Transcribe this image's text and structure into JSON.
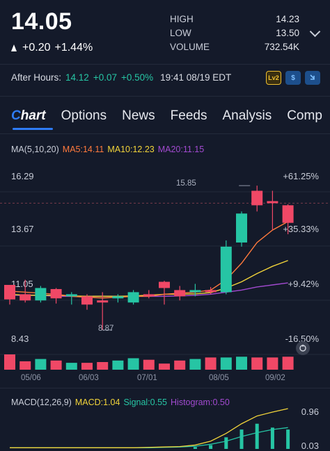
{
  "quote": {
    "price": "14.05",
    "change": "+0.20",
    "change_pct": "+1.44%",
    "high_label": "HIGH",
    "high_value": "14.23",
    "low_label": "LOW",
    "low_value": "13.50",
    "volume_label": "VOLUME",
    "volume_value": "732.54K"
  },
  "after_hours": {
    "label": "After Hours:",
    "price": "14.12",
    "change": "+0.07",
    "change_pct": "+0.50%",
    "time": "19:41 08/19 EDT",
    "badges": [
      "Lv2",
      "$",
      "arrow-down-icon"
    ]
  },
  "tabs": [
    {
      "label": "Chart",
      "active": true
    },
    {
      "label": "Options"
    },
    {
      "label": "News"
    },
    {
      "label": "Feeds"
    },
    {
      "label": "Analysis"
    },
    {
      "label": "Comp"
    }
  ],
  "ma_legend": {
    "title": "MA(5,10,20)",
    "ma5": "MA5:14.11",
    "ma10": "MA10:12.23",
    "ma20": "MA20:11.15"
  },
  "colors": {
    "up": "#26c5a4",
    "down": "#f04866",
    "ma5": "#ff7a3d",
    "ma10": "#f2d43a",
    "ma20": "#a24ad0"
  },
  "y_axis_left": [
    "16.29",
    "13.67",
    "11.05",
    "8.43"
  ],
  "y_axis_right": [
    "+61.25%",
    "+35.33%",
    "+9.42%",
    "-16.50%"
  ],
  "x_axis": [
    "05/06",
    "06/03",
    "07/01",
    "08/05",
    "09/02"
  ],
  "annotations": {
    "high": "15.85",
    "low": "8.87"
  },
  "macd_legend": {
    "title": "MACD(12,26,9)",
    "macd": "MACD:1.04",
    "signal": "Signal:0.55",
    "histogram": "Histogram:0.50"
  },
  "macd_axis": [
    "0.96",
    "0.03"
  ],
  "chart_data": {
    "type": "candlestick",
    "ylim": [
      8.43,
      16.29
    ],
    "candles": [
      {
        "o": 11.05,
        "h": 11.05,
        "l": 10.1,
        "c": 10.35,
        "dir": "down"
      },
      {
        "o": 10.6,
        "h": 11.3,
        "l": 10.2,
        "c": 10.3,
        "dir": "down"
      },
      {
        "o": 10.3,
        "h": 11.0,
        "l": 10.2,
        "c": 10.9,
        "dir": "up"
      },
      {
        "o": 10.85,
        "h": 10.9,
        "l": 10.15,
        "c": 10.4,
        "dir": "down"
      },
      {
        "o": 10.5,
        "h": 10.7,
        "l": 10.1,
        "c": 10.6,
        "dir": "up"
      },
      {
        "o": 10.5,
        "h": 10.6,
        "l": 9.85,
        "c": 10.1,
        "dir": "down"
      },
      {
        "o": 10.2,
        "h": 10.7,
        "l": 8.87,
        "c": 10.3,
        "dir": "down"
      },
      {
        "o": 10.4,
        "h": 10.6,
        "l": 10.2,
        "c": 10.5,
        "dir": "up"
      },
      {
        "o": 10.2,
        "h": 10.8,
        "l": 10.1,
        "c": 10.7,
        "dir": "up"
      },
      {
        "o": 10.6,
        "h": 10.8,
        "l": 10.4,
        "c": 10.5,
        "dir": "down"
      },
      {
        "o": 11.2,
        "h": 11.25,
        "l": 10.1,
        "c": 10.9,
        "dir": "down"
      },
      {
        "o": 10.8,
        "h": 11.0,
        "l": 10.3,
        "c": 10.5,
        "dir": "down"
      },
      {
        "o": 10.7,
        "h": 11.1,
        "l": 10.5,
        "c": 10.8,
        "dir": "up"
      },
      {
        "o": 10.7,
        "h": 10.95,
        "l": 10.6,
        "c": 10.8,
        "dir": "down"
      },
      {
        "o": 10.7,
        "h": 13.2,
        "l": 10.6,
        "c": 12.9,
        "dir": "up"
      },
      {
        "o": 13.1,
        "h": 14.6,
        "l": 12.9,
        "c": 14.5,
        "dir": "up"
      },
      {
        "o": 15.6,
        "h": 15.85,
        "l": 14.6,
        "c": 14.9,
        "dir": "down"
      },
      {
        "o": 15.1,
        "h": 15.6,
        "l": 13.7,
        "c": 15.0,
        "dir": "down"
      },
      {
        "o": 14.9,
        "h": 14.95,
        "l": 13.5,
        "c": 14.05,
        "dir": "down"
      }
    ],
    "ma5": [
      10.75,
      10.7,
      10.65,
      10.6,
      10.5,
      10.45,
      10.42,
      10.45,
      10.5,
      10.5,
      10.6,
      10.65,
      10.7,
      10.8,
      11.3,
      12.1,
      13.1,
      13.7,
      14.11
    ],
    "ma10": [
      10.6,
      10.55,
      10.55,
      10.55,
      10.52,
      10.5,
      10.5,
      10.5,
      10.52,
      10.55,
      10.6,
      10.6,
      10.62,
      10.68,
      10.9,
      11.2,
      11.6,
      11.95,
      12.23
    ],
    "ma20": [
      10.55,
      10.55,
      10.55,
      10.5,
      10.5,
      10.5,
      10.5,
      10.5,
      10.5,
      10.5,
      10.5,
      10.52,
      10.55,
      10.6,
      10.7,
      10.8,
      10.95,
      11.05,
      11.15
    ],
    "volume": [
      {
        "v": 1.0,
        "dir": "down"
      },
      {
        "v": 0.55,
        "dir": "down"
      },
      {
        "v": 0.7,
        "dir": "up"
      },
      {
        "v": 0.6,
        "dir": "down"
      },
      {
        "v": 0.45,
        "dir": "up"
      },
      {
        "v": 0.45,
        "dir": "down"
      },
      {
        "v": 0.5,
        "dir": "down"
      },
      {
        "v": 0.6,
        "dir": "up"
      },
      {
        "v": 0.75,
        "dir": "up"
      },
      {
        "v": 0.65,
        "dir": "down"
      },
      {
        "v": 0.4,
        "dir": "down"
      },
      {
        "v": 0.6,
        "dir": "down"
      },
      {
        "v": 0.7,
        "dir": "up"
      },
      {
        "v": 0.8,
        "dir": "down"
      },
      {
        "v": 0.8,
        "dir": "up"
      },
      {
        "v": 0.85,
        "dir": "up"
      },
      {
        "v": 0.8,
        "dir": "down"
      },
      {
        "v": 0.8,
        "dir": "down"
      },
      {
        "v": 0.85,
        "dir": "down"
      }
    ],
    "macd_hist": [
      0,
      0,
      0,
      0,
      0,
      0,
      0,
      0,
      0,
      0,
      0,
      0,
      0.05,
      0.1,
      0.3,
      0.5,
      0.65,
      0.55,
      0.5
    ],
    "macd_line": [
      0.03,
      0.03,
      0.03,
      0.03,
      0.03,
      0.03,
      0.03,
      0.03,
      0.03,
      0.04,
      0.05,
      0.06,
      0.1,
      0.2,
      0.4,
      0.65,
      0.85,
      0.95,
      1.04
    ],
    "signal_line": [
      0.03,
      0.03,
      0.03,
      0.03,
      0.03,
      0.03,
      0.03,
      0.03,
      0.03,
      0.03,
      0.04,
      0.05,
      0.07,
      0.12,
      0.2,
      0.32,
      0.42,
      0.5,
      0.55
    ]
  }
}
